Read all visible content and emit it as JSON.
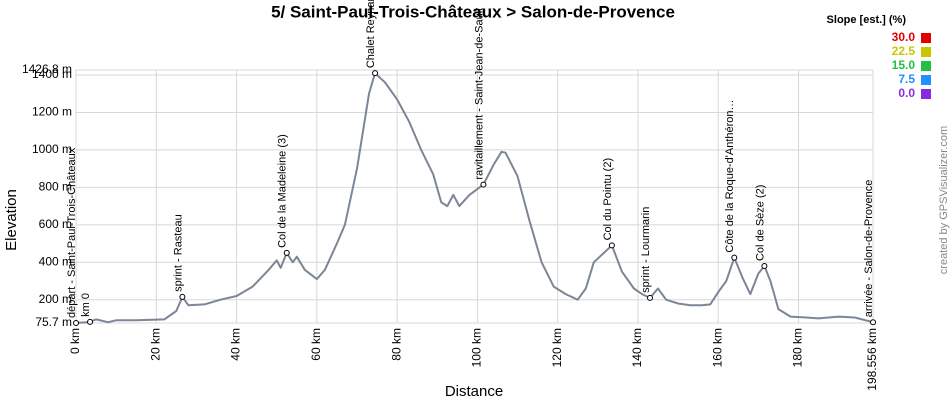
{
  "chart_data": {
    "type": "line",
    "title": "5/ Saint-Paul-Trois-Châteaux > Salon-de-Provence",
    "x_label": "Distance",
    "y_label": "Elevation",
    "credit": "created by GPSVisualizer.com",
    "color": "#7b8696",
    "grid": true,
    "x": [
      0,
      3,
      5,
      8,
      10,
      15,
      22,
      25,
      26.5,
      28,
      32,
      36,
      40,
      44,
      48,
      50,
      51,
      52.5,
      54,
      55,
      57,
      60,
      62,
      65,
      67,
      70,
      73,
      74.5,
      77,
      80,
      83,
      86,
      89,
      91,
      92.5,
      94,
      95.5,
      98,
      101.5,
      104,
      106,
      107,
      110,
      113,
      116,
      119,
      122,
      125,
      127,
      129,
      131,
      133.5,
      136,
      139,
      141,
      143,
      145,
      147,
      150,
      153,
      156,
      158,
      160,
      162,
      164,
      166,
      168,
      170,
      171.5,
      173,
      175,
      178,
      182,
      185,
      190,
      194,
      198.556
    ],
    "values": [
      76,
      80,
      95,
      80,
      90,
      90,
      95,
      140,
      215,
      170,
      175,
      200,
      220,
      270,
      360,
      410,
      370,
      450,
      400,
      430,
      360,
      310,
      360,
      500,
      600,
      900,
      1300,
      1410,
      1360,
      1270,
      1150,
      1000,
      870,
      720,
      700,
      760,
      700,
      760,
      815,
      920,
      990,
      985,
      860,
      620,
      400,
      270,
      230,
      200,
      260,
      400,
      440,
      490,
      350,
      260,
      230,
      210,
      260,
      200,
      180,
      170,
      170,
      175,
      240,
      300,
      425,
      320,
      230,
      340,
      380,
      300,
      150,
      110,
      105,
      100,
      110,
      105,
      80
    ],
    "xlim": [
      0,
      198.556
    ],
    "xticks": [
      {
        "value": 0,
        "label": "0 km"
      },
      {
        "value": 20,
        "label": "20 km"
      },
      {
        "value": 40,
        "label": "40 km"
      },
      {
        "value": 60,
        "label": "60 km"
      },
      {
        "value": 80,
        "label": "80 km"
      },
      {
        "value": 100,
        "label": "100 km"
      },
      {
        "value": 120,
        "label": "120 km"
      },
      {
        "value": 140,
        "label": "140 km"
      },
      {
        "value": 160,
        "label": "160 km"
      },
      {
        "value": 180,
        "label": "180 km"
      },
      {
        "value": 198.556,
        "label": "198.556 km"
      }
    ],
    "ylim": [
      75.7,
      1426.8
    ],
    "yticks": [
      {
        "value": 75.7,
        "label": "75.7 m"
      },
      {
        "value": 200,
        "label": "200 m"
      },
      {
        "value": 400,
        "label": "400 m"
      },
      {
        "value": 600,
        "label": "600 m"
      },
      {
        "value": 800,
        "label": "800 m"
      },
      {
        "value": 1000,
        "label": "1000 m"
      },
      {
        "value": 1200,
        "label": "1200 m"
      },
      {
        "value": 1400,
        "label": "1400 m"
      },
      {
        "value": 1426.8,
        "label": "1426.8 m"
      }
    ],
    "waypoints": [
      {
        "name": "départ - Saint-Paul-Trois-Châteaux",
        "x": 0,
        "y": 76
      },
      {
        "name": "km 0",
        "x": 3.5,
        "y": 82
      },
      {
        "name": "sprint - Rasteau",
        "x": 26.5,
        "y": 215
      },
      {
        "name": "Col de la Madeleine (3)",
        "x": 52.5,
        "y": 450
      },
      {
        "name": "Chalet Reynard",
        "x": 74.5,
        "y": 1410
      },
      {
        "name": "ravitaillement - Saint-Jean-de-Sault",
        "x": 101.5,
        "y": 815
      },
      {
        "name": "Col du Pointu (2)",
        "x": 133.5,
        "y": 490
      },
      {
        "name": "sprint - Lourmarin",
        "x": 143,
        "y": 210
      },
      {
        "name": "Côte de la Roque-d'Anthéron…",
        "x": 164,
        "y": 425
      },
      {
        "name": "Col de Sèze (2)",
        "x": 171.5,
        "y": 380
      },
      {
        "name": "arrivée - Salon-de-Provence",
        "x": 198.556,
        "y": 80
      }
    ],
    "legend": {
      "title": "Slope [est.] (%)",
      "items": [
        {
          "value": 30,
          "label": "30.0",
          "color": "#e00000"
        },
        {
          "value": 22.5,
          "label": "22.5",
          "color": "#c8c800"
        },
        {
          "value": 15,
          "label": "15.0",
          "color": "#22c040"
        },
        {
          "value": 7.5,
          "label": "7.5",
          "color": "#1e90ff"
        },
        {
          "value": 0,
          "label": "0.0",
          "color": "#8a2be2"
        }
      ]
    }
  }
}
